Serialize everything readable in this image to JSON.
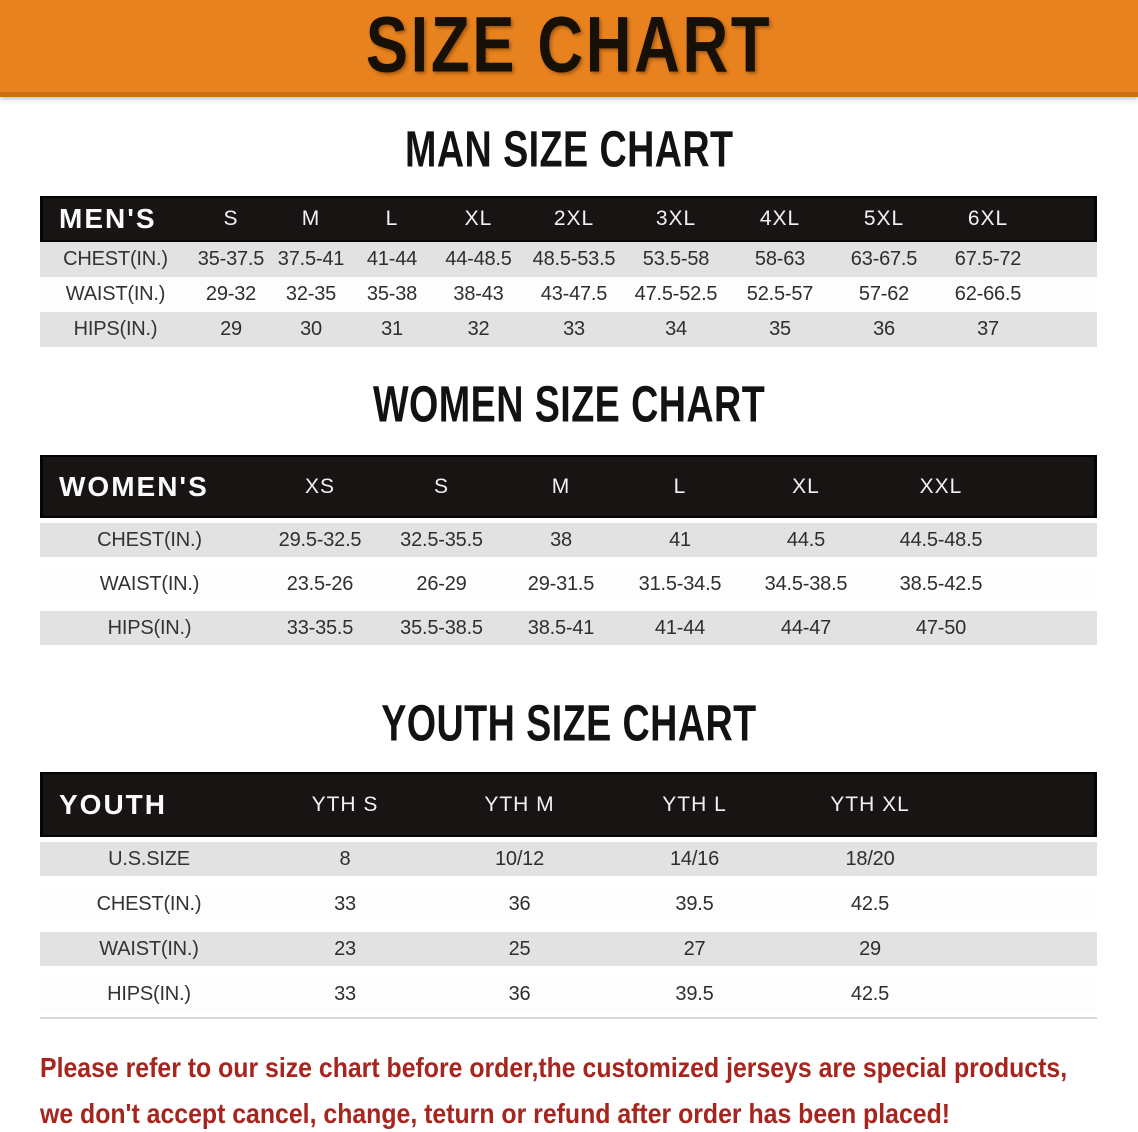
{
  "banner": {
    "title": "SIZE CHART"
  },
  "sections": [
    {
      "id": "men",
      "heading": "MAN SIZE CHART",
      "corner_label": "MEN'S",
      "columns": [
        "S",
        "M",
        "L",
        "XL",
        "2XL",
        "3XL",
        "4XL",
        "5XL",
        "6XL"
      ],
      "rows": [
        {
          "label": "CHEST(IN.)",
          "values": [
            "35-37.5",
            "37.5-41",
            "41-44",
            "44-48.5",
            "48.5-53.5",
            "53.5-58",
            "58-63",
            "63-67.5",
            "67.5-72"
          ]
        },
        {
          "label": "WAIST(IN.)",
          "values": [
            "29-32",
            "32-35",
            "35-38",
            "38-43",
            "43-47.5",
            "47.5-52.5",
            "52.5-57",
            "57-62",
            "62-66.5"
          ]
        },
        {
          "label": "HIPS(IN.)",
          "values": [
            "29",
            "30",
            "31",
            "32",
            "33",
            "34",
            "35",
            "36",
            "37"
          ]
        }
      ]
    },
    {
      "id": "women",
      "heading": "WOMEN SIZE CHART",
      "corner_label": "WOMEN'S",
      "columns": [
        "XS",
        "S",
        "M",
        "L",
        "XL",
        "XXL"
      ],
      "rows": [
        {
          "label": "CHEST(IN.)",
          "values": [
            "29.5-32.5",
            "32.5-35.5",
            "38",
            "41",
            "44.5",
            "44.5-48.5"
          ]
        },
        {
          "label": "WAIST(IN.)",
          "values": [
            "23.5-26",
            "26-29",
            "29-31.5",
            "31.5-34.5",
            "34.5-38.5",
            "38.5-42.5"
          ]
        },
        {
          "label": "HIPS(IN.)",
          "values": [
            "33-35.5",
            "35.5-38.5",
            "38.5-41",
            "41-44",
            "44-47",
            "47-50"
          ]
        }
      ]
    },
    {
      "id": "youth",
      "heading": "YOUTH SIZE CHART",
      "corner_label": "YOUTH",
      "columns": [
        "YTH S",
        "YTH M",
        "YTH L",
        "YTH XL"
      ],
      "rows": [
        {
          "label": "U.S.SIZE",
          "values": [
            "8",
            "10/12",
            "14/16",
            "18/20"
          ]
        },
        {
          "label": "CHEST(IN.)",
          "values": [
            "33",
            "36",
            "39.5",
            "42.5"
          ]
        },
        {
          "label": "WAIST(IN.)",
          "values": [
            "23",
            "25",
            "27",
            "29"
          ]
        },
        {
          "label": "HIPS(IN.)",
          "values": [
            "33",
            "36",
            "39.5",
            "42.5"
          ]
        }
      ]
    }
  ],
  "disclaimer": {
    "line1": "Please refer to our size chart before order,the customized jerseys are special products,",
    "line2": "we don't accept cancel, change, teturn or refund after order has been placed!"
  },
  "colors": {
    "banner_bg": "#E8821E",
    "banner_border": "#C96F14",
    "header_bar_bg": "#181414",
    "header_text": "#F2F2F2",
    "band_row_bg": "#E2E2E2",
    "plain_row_bg": "#FDFDFD",
    "body_text": "#2E2E2E",
    "disclaimer_text": "#A6261F"
  }
}
